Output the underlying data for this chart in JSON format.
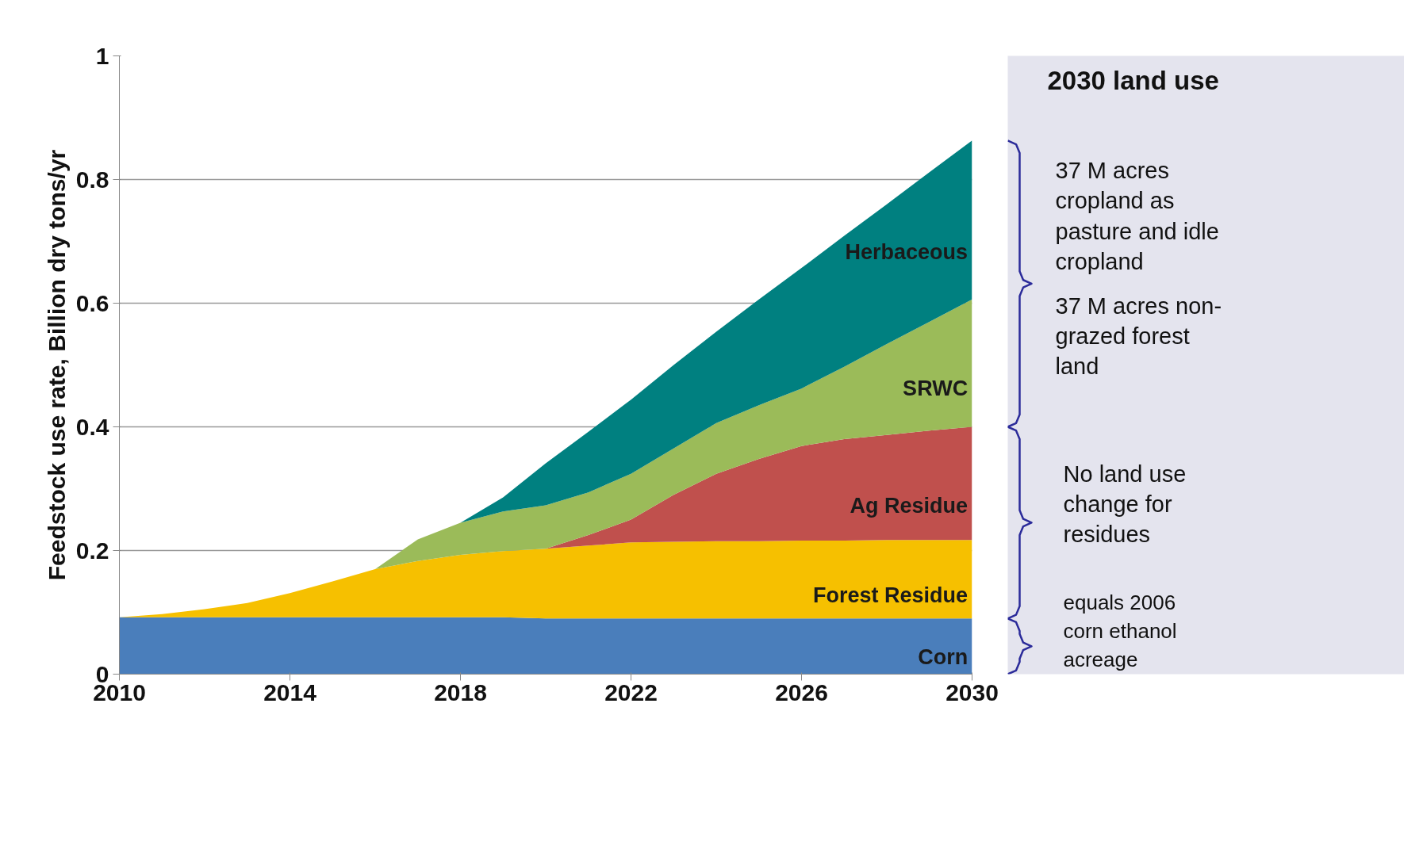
{
  "chart_data": {
    "type": "area",
    "stacked": true,
    "ylabel": "Feedstock use rate, Billion dry tons/yr",
    "x": [
      2010,
      2011,
      2012,
      2013,
      2014,
      2015,
      2016,
      2017,
      2018,
      2019,
      2020,
      2021,
      2022,
      2023,
      2024,
      2025,
      2026,
      2027,
      2028,
      2029,
      2030
    ],
    "series": [
      {
        "name": "Corn",
        "color": "#4a7ebb",
        "values": [
          0.092,
          0.092,
          0.092,
          0.092,
          0.092,
          0.092,
          0.092,
          0.092,
          0.092,
          0.092,
          0.09,
          0.09,
          0.09,
          0.09,
          0.09,
          0.09,
          0.09,
          0.09,
          0.09,
          0.09,
          0.09
        ]
      },
      {
        "name": "Forest Residue",
        "color": "#f6c000",
        "values": [
          0,
          0.005,
          0.013,
          0.023,
          0.039,
          0.058,
          0.078,
          0.091,
          0.101,
          0.107,
          0.113,
          0.118,
          0.123,
          0.124,
          0.125,
          0.125,
          0.126,
          0.126,
          0.127,
          0.127,
          0.127
        ]
      },
      {
        "name": "Ag Residue",
        "color": "#c0504d",
        "values": [
          0,
          0,
          0,
          0,
          0,
          0,
          0,
          0,
          0,
          0,
          0,
          0.017,
          0.037,
          0.076,
          0.109,
          0.133,
          0.153,
          0.164,
          0.17,
          0.177,
          0.183
        ]
      },
      {
        "name": "SRWC",
        "color": "#9bbb59",
        "values": [
          0,
          0,
          0,
          0,
          0,
          0,
          0,
          0.035,
          0.052,
          0.064,
          0.07,
          0.069,
          0.074,
          0.075,
          0.082,
          0.087,
          0.093,
          0.117,
          0.147,
          0.176,
          0.206
        ]
      },
      {
        "name": "Herbaceous",
        "color": "#008080",
        "values": [
          0,
          0,
          0,
          0,
          0,
          0,
          0,
          0,
          0,
          0.023,
          0.068,
          0.098,
          0.12,
          0.135,
          0.148,
          0.171,
          0.195,
          0.212,
          0.226,
          0.242,
          0.257
        ]
      }
    ],
    "xlim": [
      2010,
      2030
    ],
    "xticks": [
      2010,
      2014,
      2018,
      2022,
      2026,
      2030
    ],
    "ylim": [
      0,
      1
    ],
    "yticks": [
      0,
      0.2,
      0.4,
      0.6,
      0.8,
      1
    ],
    "grid": "y",
    "annotations": [
      "2030 land use",
      "37 M acres\ncropland as\npasture and idle\ncropland",
      "37 M acres non-\ngrazed forest\nland",
      "No land use\nchange for\nresidues",
      "equals 2006\ncorn ethanol\nacreage"
    ]
  }
}
